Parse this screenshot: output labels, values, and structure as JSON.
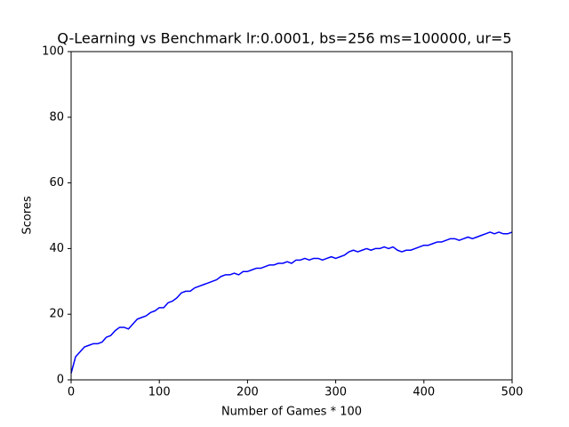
{
  "chart_data": {
    "type": "line",
    "title": "Q-Learning vs Benchmark lr:0.0001, bs=256 ms=100000, ur=5",
    "x_label": "Number of Games * 100",
    "y_label": "Scores",
    "x": [
      0,
      5,
      10,
      15,
      20,
      25,
      30,
      35,
      40,
      45,
      50,
      55,
      60,
      65,
      70,
      75,
      80,
      85,
      90,
      95,
      100,
      105,
      110,
      115,
      120,
      125,
      130,
      135,
      140,
      145,
      150,
      155,
      160,
      165,
      170,
      175,
      180,
      185,
      190,
      195,
      200,
      205,
      210,
      215,
      220,
      225,
      230,
      235,
      240,
      245,
      250,
      255,
      260,
      265,
      270,
      275,
      280,
      285,
      290,
      295,
      300,
      305,
      310,
      315,
      320,
      325,
      330,
      335,
      340,
      345,
      350,
      355,
      360,
      365,
      370,
      375,
      380,
      385,
      390,
      395,
      400,
      405,
      410,
      415,
      420,
      425,
      430,
      435,
      440,
      445,
      450,
      455,
      460,
      465,
      470,
      475,
      480,
      485,
      490,
      495,
      500
    ],
    "series": [
      {
        "color": "#0000ff",
        "values": [
          2,
          7,
          8.5,
          10,
          10.5,
          11,
          11,
          11.5,
          13,
          13.5,
          15,
          16,
          16,
          15.5,
          17,
          18.5,
          19,
          19.5,
          20.5,
          21,
          22,
          22,
          23.5,
          24,
          25,
          26.5,
          27,
          27,
          28,
          28.5,
          29,
          29.5,
          30,
          30.5,
          31.5,
          32,
          32,
          32.5,
          32,
          33,
          33,
          33.5,
          34,
          34,
          34.5,
          35,
          35,
          35.5,
          35.5,
          36,
          35.5,
          36.5,
          36.5,
          37,
          36.5,
          37,
          37,
          36.5,
          37,
          37.5,
          37,
          37.5,
          38,
          39,
          39.5,
          39,
          39.5,
          40,
          39.5,
          40,
          40,
          40.5,
          40,
          40.5,
          39.5,
          39,
          39.5,
          39.5,
          40,
          40.5,
          41,
          41,
          41.5,
          42,
          42,
          42.5,
          43,
          43,
          42.5,
          43,
          43.5,
          43,
          43.5,
          44,
          44.5,
          45,
          44.5,
          45,
          44.5,
          44.5,
          45
        ]
      }
    ],
    "xlim": [
      0,
      500
    ],
    "xticks": [
      0,
      100,
      200,
      300,
      400,
      500
    ],
    "ylim": [
      0,
      100
    ],
    "yticks": [
      0,
      20,
      40,
      60,
      80,
      100
    ]
  }
}
